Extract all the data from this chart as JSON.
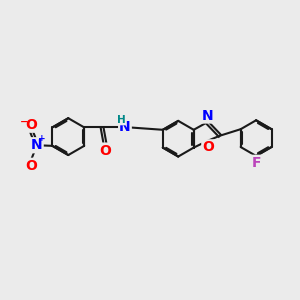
{
  "bg_color": "#ebebeb",
  "bond_color": "#1a1a1a",
  "bond_width": 1.5,
  "atom_colors": {
    "N": "#0000ff",
    "O": "#ff0000",
    "F": "#bb44bb",
    "H": "#008888",
    "C": "#1a1a1a"
  },
  "font_size": 9.5
}
